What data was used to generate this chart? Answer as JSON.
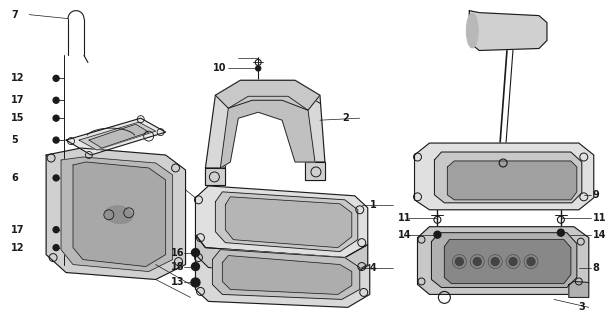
{
  "bg_color": "#ffffff",
  "line_color": "#1a1a1a",
  "fig_width": 6.11,
  "fig_height": 3.2,
  "dpi": 100
}
